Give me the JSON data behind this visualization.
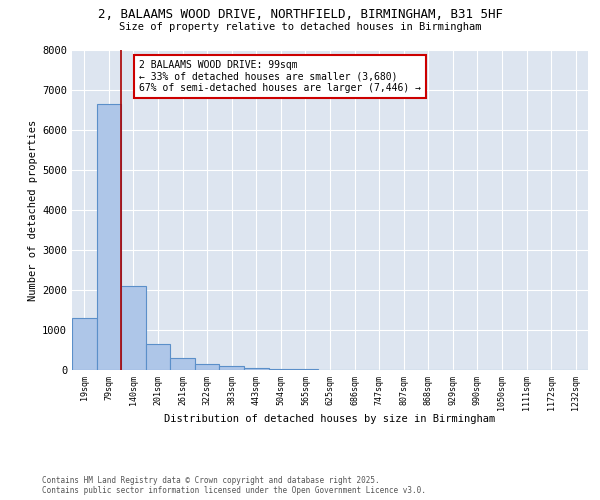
{
  "title_line1": "2, BALAAMS WOOD DRIVE, NORTHFIELD, BIRMINGHAM, B31 5HF",
  "title_line2": "Size of property relative to detached houses in Birmingham",
  "xlabel": "Distribution of detached houses by size in Birmingham",
  "ylabel": "Number of detached properties",
  "categories": [
    "19sqm",
    "79sqm",
    "140sqm",
    "201sqm",
    "261sqm",
    "322sqm",
    "383sqm",
    "443sqm",
    "504sqm",
    "565sqm",
    "625sqm",
    "686sqm",
    "747sqm",
    "807sqm",
    "868sqm",
    "929sqm",
    "990sqm",
    "1050sqm",
    "1111sqm",
    "1172sqm",
    "1232sqm"
  ],
  "values": [
    1310,
    6650,
    2100,
    650,
    300,
    150,
    90,
    55,
    30,
    15,
    10,
    5,
    3,
    2,
    2,
    1,
    1,
    1,
    1,
    1,
    1
  ],
  "bar_color": "#aec6e8",
  "bar_edge_color": "#5b8fc9",
  "vline_color": "#aa0000",
  "annotation_title": "2 BALAAMS WOOD DRIVE: 99sqm",
  "annotation_line1": "← 33% of detached houses are smaller (3,680)",
  "annotation_line2": "67% of semi-detached houses are larger (7,446) →",
  "annotation_box_color": "#cc0000",
  "ylim": [
    0,
    8000
  ],
  "yticks": [
    0,
    1000,
    2000,
    3000,
    4000,
    5000,
    6000,
    7000,
    8000
  ],
  "background_color": "#dde5f0",
  "footer_line1": "Contains HM Land Registry data © Crown copyright and database right 2025.",
  "footer_line2": "Contains public sector information licensed under the Open Government Licence v3.0."
}
